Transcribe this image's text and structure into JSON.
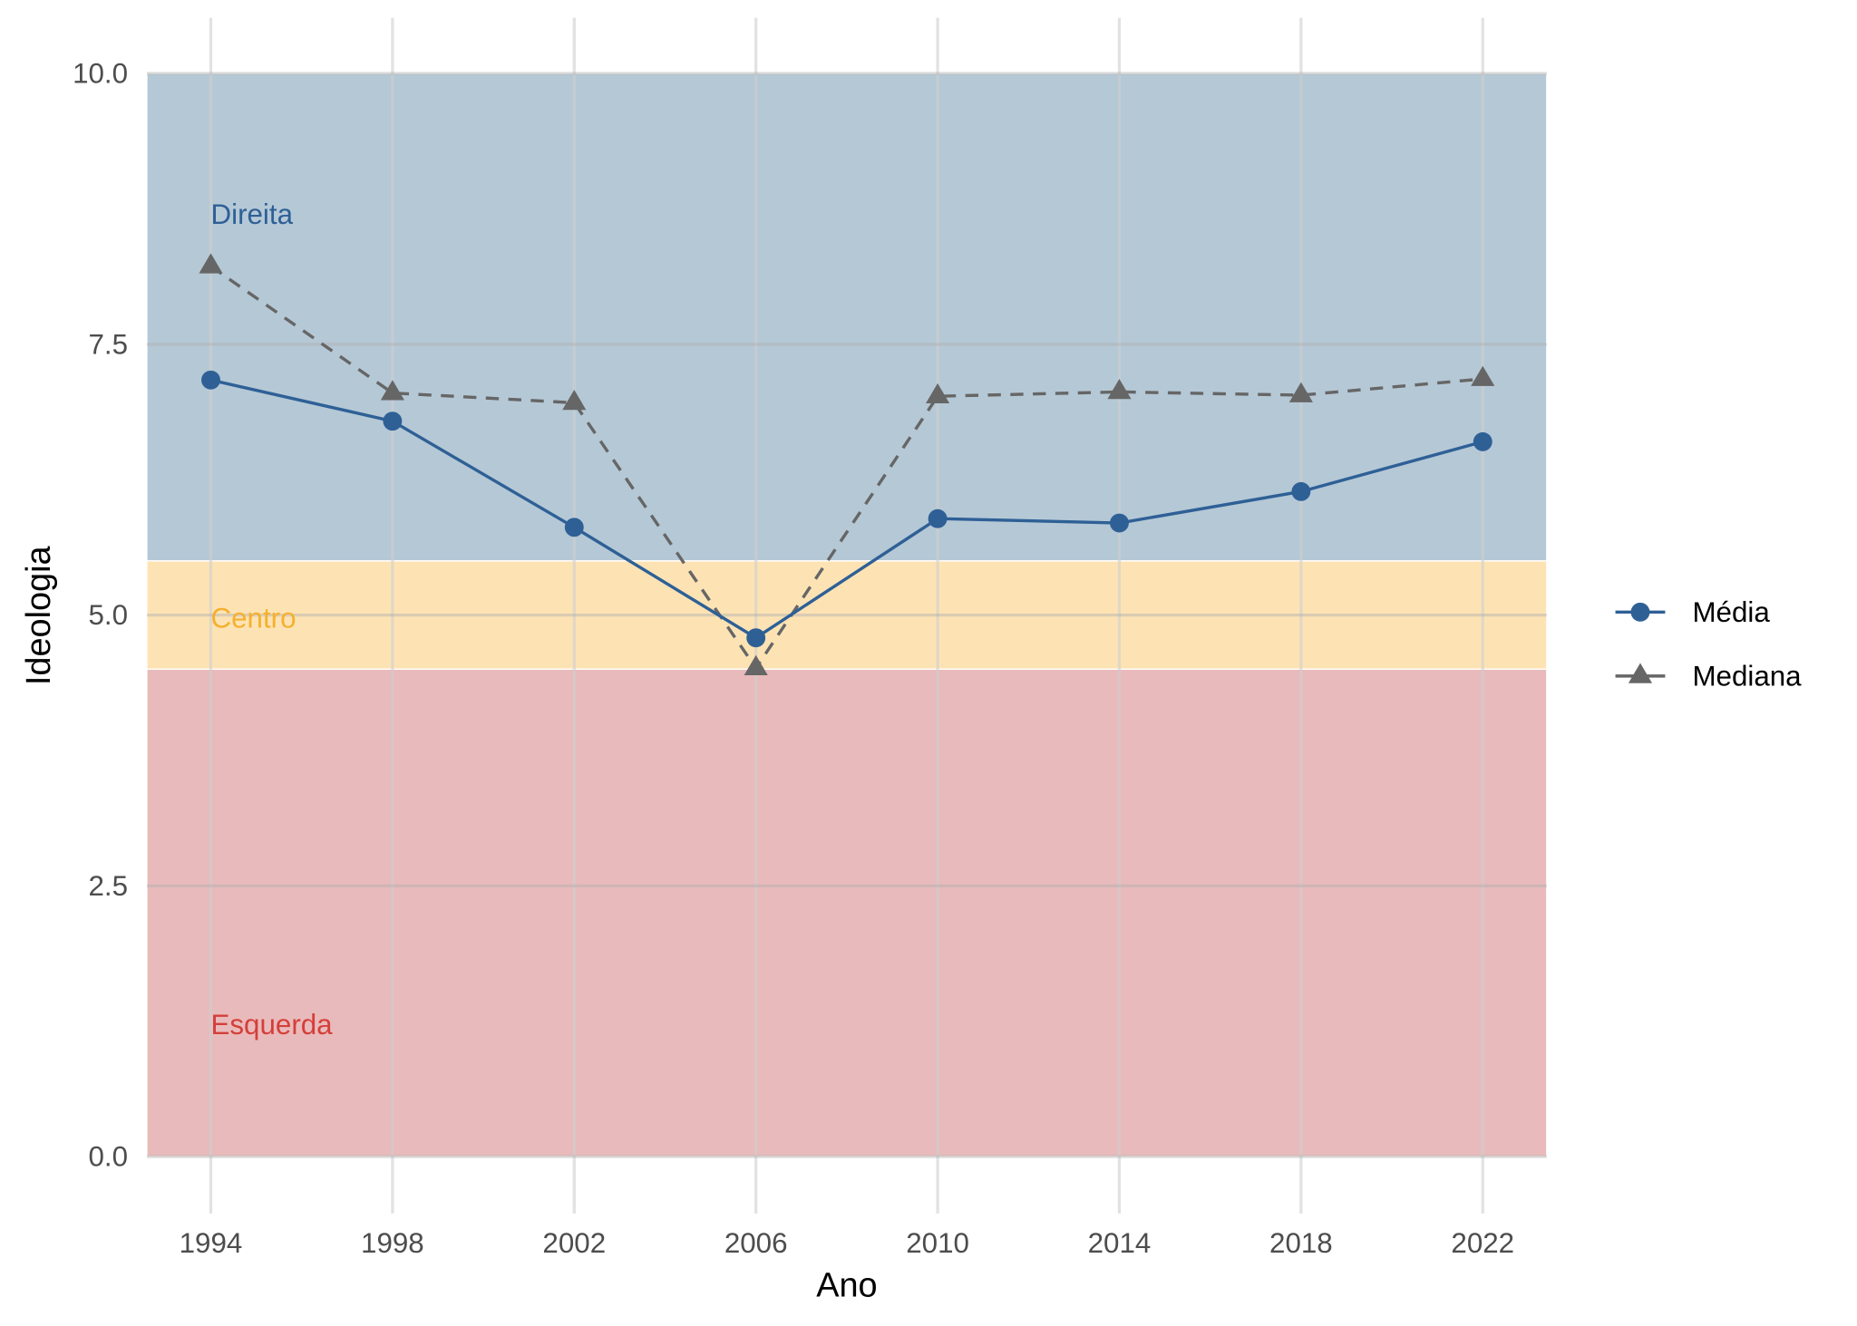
{
  "chart_data": {
    "type": "line",
    "xlabel": "Ano",
    "ylabel": "Ideologia",
    "x": [
      1994,
      1998,
      2002,
      2006,
      2010,
      2014,
      2018,
      2022
    ],
    "x_ticks": [
      "1994",
      "1998",
      "2002",
      "2006",
      "2010",
      "2014",
      "2018",
      "2022"
    ],
    "ylim": [
      0,
      10
    ],
    "y_ticks": [
      "0.0",
      "2.5",
      "5.0",
      "7.5",
      "10.0"
    ],
    "grid": true,
    "legend_position": "right",
    "series": [
      {
        "name": "Média",
        "color": "#2e6096",
        "marker": "circle",
        "linestyle": "solid",
        "values": [
          7.17,
          6.79,
          5.81,
          4.79,
          5.89,
          5.85,
          6.14,
          6.6
        ]
      },
      {
        "name": "Mediana",
        "color": "#666666",
        "marker": "triangle",
        "linestyle": "dashed",
        "values": [
          8.22,
          7.05,
          6.96,
          4.51,
          7.02,
          7.06,
          7.03,
          7.18
        ]
      }
    ],
    "bands": [
      {
        "label": "Direita",
        "from": 5.5,
        "to": 10,
        "fill": "#b5c8d6",
        "text_color": "#2e6096"
      },
      {
        "label": "Centro",
        "from": 4.5,
        "to": 5.5,
        "fill": "#fde3b4",
        "text_color": "#f5b02e"
      },
      {
        "label": "Esquerda",
        "from": 0,
        "to": 4.5,
        "fill": "#e9babb",
        "text_color": "#d43f3a"
      }
    ]
  }
}
